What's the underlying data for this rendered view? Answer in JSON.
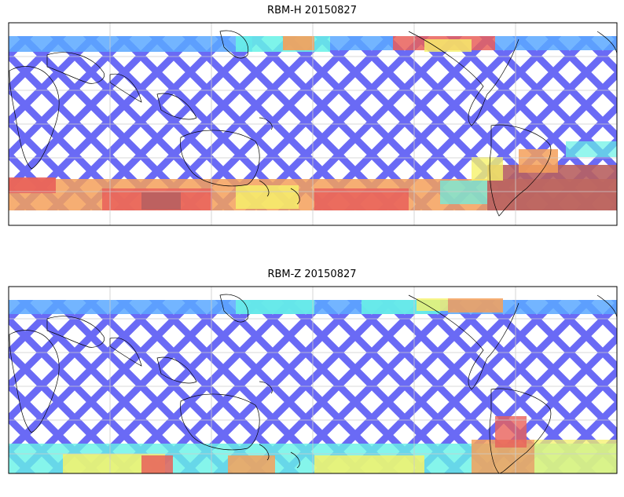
{
  "panels": [
    {
      "title": "RBM-H 20150827"
    },
    {
      "title": "RBM-Z 20150827"
    }
  ],
  "colors": {
    "low": "#6a6af5",
    "mid_low": "#5aa8ff",
    "mid": "#66f2e6",
    "mid_high": "#f6f26a",
    "high": "#f5a05a",
    "very_high": "#e9605a",
    "max": "#b86060",
    "coast": "#000000",
    "grid": "#cccccc",
    "frame": "#000000"
  }
}
